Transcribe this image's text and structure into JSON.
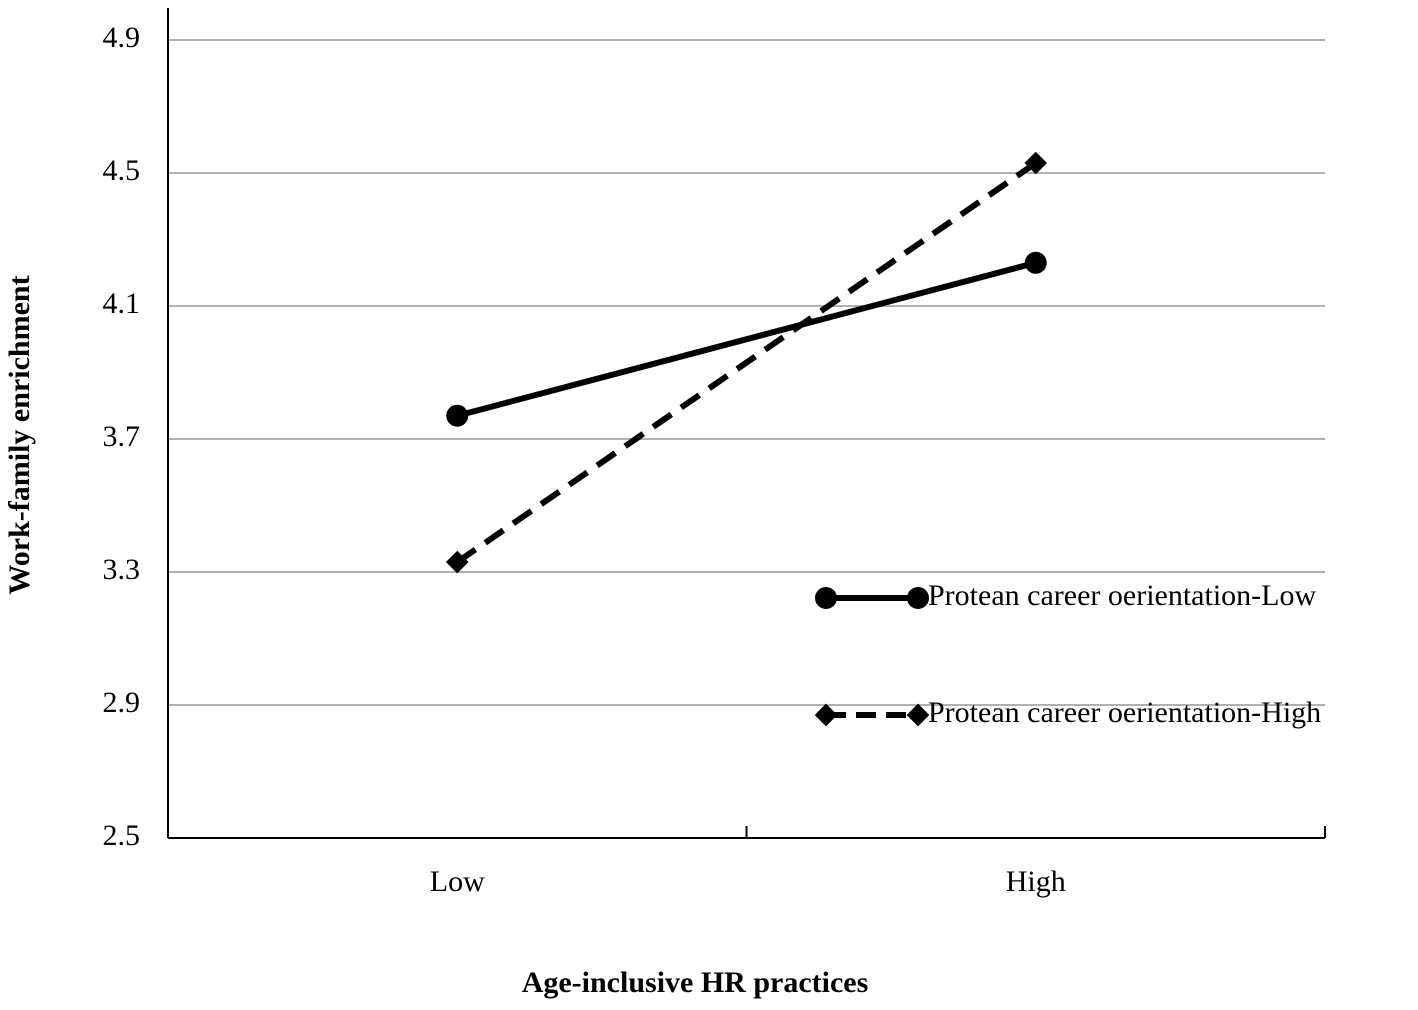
{
  "chart_data": {
    "type": "line",
    "categories": [
      "Low",
      "High"
    ],
    "series": [
      {
        "name": "Protean career oerientation-Low",
        "color": "#000000",
        "line_style": "solid",
        "marker": "circle",
        "values": [
          3.77,
          4.23
        ]
      },
      {
        "name": "Protean career oerientation-High",
        "color": "#000000",
        "line_style": "dashed",
        "marker": "diamond",
        "values": [
          3.33,
          4.53
        ]
      }
    ],
    "x_label": "Age-inclusive HR practices",
    "y_label": "Work-family enrichment",
    "ylim": [
      2.5,
      4.9
    ],
    "yticks": [
      2.5,
      2.9,
      3.3,
      3.7,
      4.1,
      4.5,
      4.9
    ],
    "grid": true,
    "legend": "lower right"
  }
}
